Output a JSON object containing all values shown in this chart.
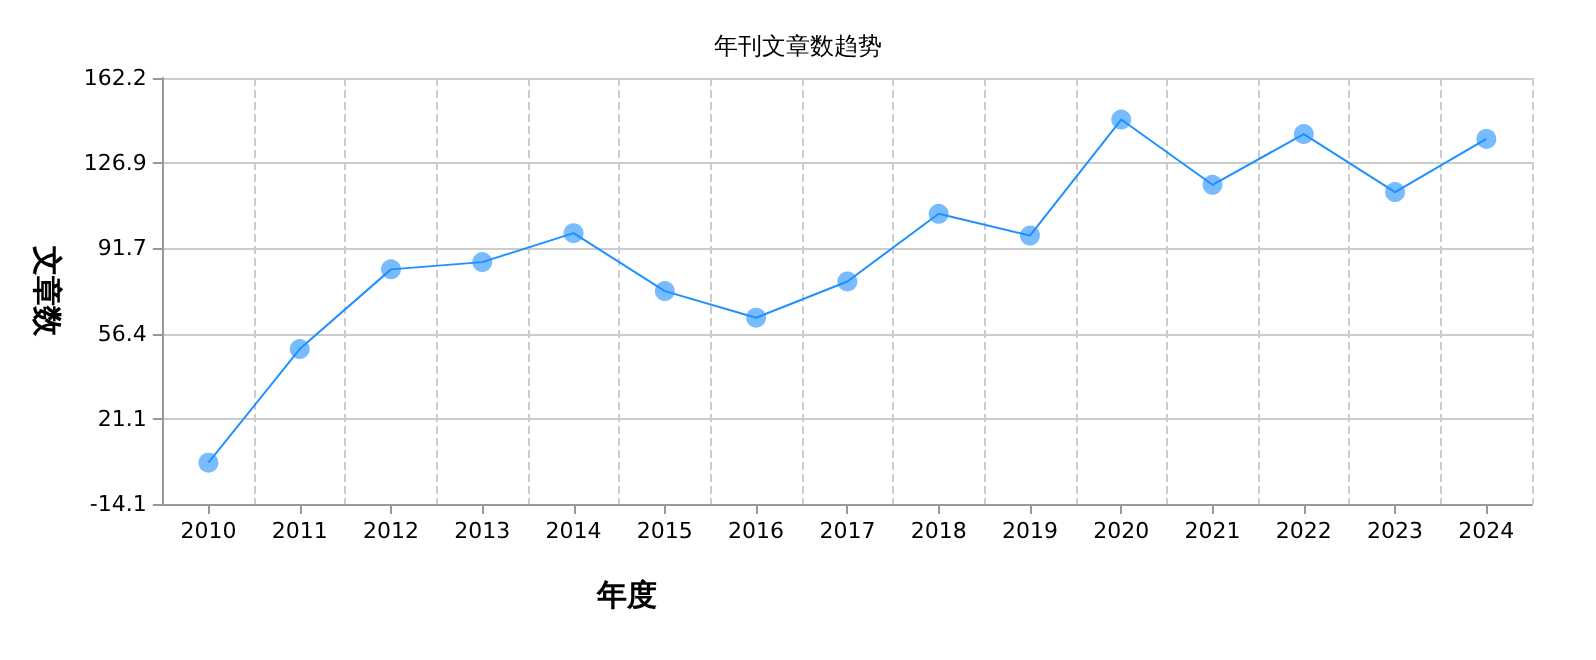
{
  "chart_data": {
    "type": "line",
    "title": "年刊文章数趋势",
    "xlabel": "年度",
    "ylabel": "文章数",
    "categories": [
      "2010",
      "2011",
      "2012",
      "2013",
      "2014",
      "2015",
      "2016",
      "2017",
      "2018",
      "2019",
      "2020",
      "2021",
      "2022",
      "2023",
      "2024"
    ],
    "series": [
      {
        "color": "#1e90ff",
        "values": [
          3,
          50,
          83,
          86,
          98,
          74,
          63,
          78,
          106,
          97,
          145,
          118,
          139,
          115,
          137
        ]
      }
    ],
    "ylim": [
      -14.1,
      162.2
    ],
    "yticks": [
      -14.1,
      21.1,
      56.4,
      91.7,
      126.9,
      162.2
    ],
    "grid": true,
    "marker": "circle",
    "line_style": "solid"
  }
}
